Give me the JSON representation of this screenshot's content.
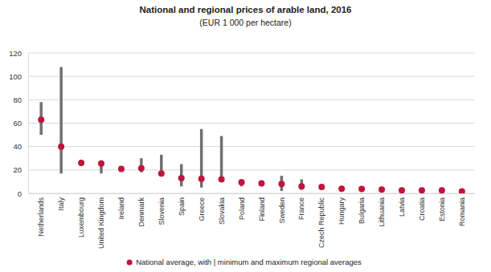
{
  "chart_data": {
    "type": "range_dot",
    "title": "National and regional prices of arable land, 2016",
    "subtitle": "(EUR 1 000 per hectare)",
    "categories": [
      "Netherlands",
      "Italy",
      "Luxembourg",
      "United Kingdom",
      "Ireland",
      "Denmark",
      "Slovenia",
      "Spain",
      "Greece",
      "Slovakia",
      "Poland",
      "Finland",
      "Sweden",
      "France",
      "Czech Republic",
      "Hungary",
      "Bulgaria",
      "Lithuania",
      "Latvia",
      "Croatia",
      "Estonia",
      "Romania"
    ],
    "series": [
      {
        "name": "National average, with | minimum and maximum regional averages",
        "color": "#c0143c",
        "marker": "circle",
        "values": [
          63,
          40,
          26,
          25.5,
          21,
          21.5,
          17,
          13,
          12.5,
          12,
          9.5,
          8.5,
          8,
          6,
          5.5,
          4,
          3.8,
          3.2,
          2.6,
          2.6,
          2.5,
          1.8
        ],
        "min": [
          50,
          17,
          null,
          17,
          19,
          18,
          15,
          6,
          5,
          11,
          6,
          6,
          2,
          3,
          null,
          null,
          null,
          null,
          null,
          null,
          null,
          null
        ],
        "max": [
          78,
          108,
          null,
          28,
          23,
          30,
          33,
          25,
          55,
          49,
          12,
          10,
          15,
          12,
          null,
          null,
          null,
          null,
          null,
          null,
          null,
          null
        ]
      }
    ],
    "ylim": [
      0,
      120
    ],
    "yticks": [
      0,
      20,
      40,
      60,
      80,
      100,
      120
    ],
    "grid": true,
    "legend": "bottom"
  }
}
